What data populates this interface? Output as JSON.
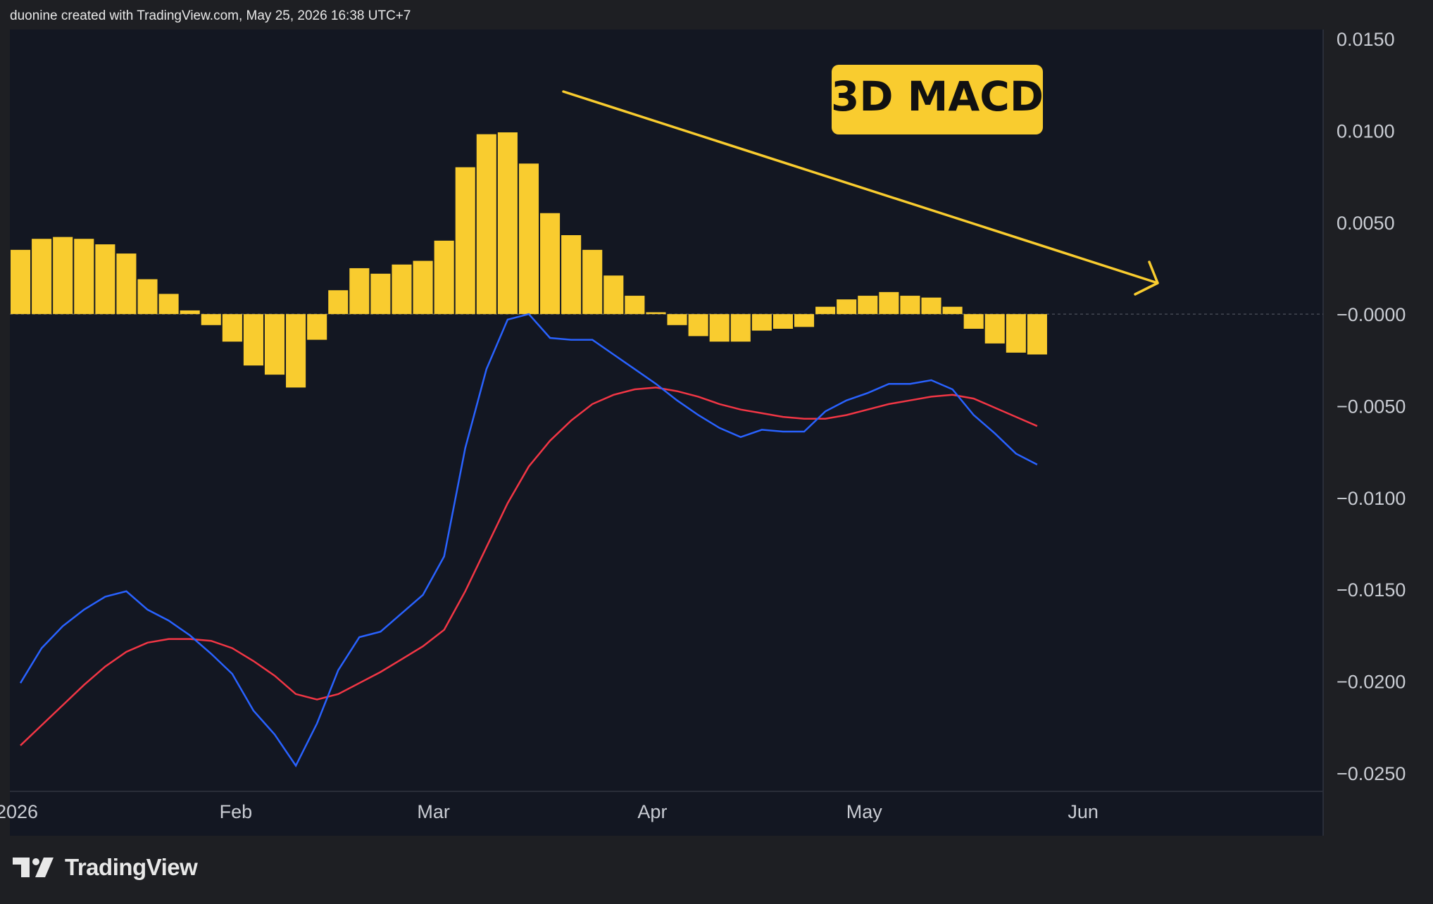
{
  "header": {
    "attribution": "duonine created with TradingView.com, May 25, 2026 16:38 UTC+7"
  },
  "brand": {
    "logo_text": "TradingView",
    "icon": "tradingview-logo-icon"
  },
  "colors": {
    "background": "#1e1f23",
    "plot_background": "#131722",
    "histogram": "#f9cc2f",
    "macd_line": "#2962ff",
    "signal_line": "#f23645",
    "annotation_bg": "#f9cc2f",
    "arrow": "#f9cc2f"
  },
  "annotation": {
    "label": "3D MACD",
    "arrow_icon": "down-trend-arrow-icon"
  },
  "chart_data": {
    "type": "bar",
    "title": "",
    "xlabel": "",
    "ylabel": "",
    "ylim": [
      -0.026,
      0.0155
    ],
    "yticks": [
      0.015,
      0.01,
      0.005,
      0.0,
      -0.005,
      -0.01,
      -0.015,
      -0.02,
      -0.025
    ],
    "ytick_labels": [
      "0.0150",
      "0.0100",
      "0.0050",
      "−0.0000",
      "−0.0050",
      "−0.0100",
      "−0.0150",
      "−0.0200",
      "−0.0250"
    ],
    "xticks": [
      {
        "label": "2026",
        "date": "2026-01-01"
      },
      {
        "label": "Feb",
        "date": "2026-02-01"
      },
      {
        "label": "Mar",
        "date": "2026-03-01"
      },
      {
        "label": "Apr",
        "date": "2026-04-01"
      },
      {
        "label": "May",
        "date": "2026-05-01"
      },
      {
        "label": "Jun",
        "date": "2026-06-01"
      }
    ],
    "xlim": [
      "2025-12-31",
      "2026-07-05"
    ],
    "grid": false,
    "x": [
      "2025-12-31",
      "2026-01-03",
      "2026-01-06",
      "2026-01-09",
      "2026-01-12",
      "2026-01-15",
      "2026-01-18",
      "2026-01-21",
      "2026-01-24",
      "2026-01-27",
      "2026-01-30",
      "2026-02-02",
      "2026-02-05",
      "2026-02-08",
      "2026-02-11",
      "2026-02-14",
      "2026-02-17",
      "2026-02-20",
      "2026-02-23",
      "2026-02-26",
      "2026-03-01",
      "2026-03-04",
      "2026-03-07",
      "2026-03-10",
      "2026-03-13",
      "2026-03-16",
      "2026-03-19",
      "2026-03-22",
      "2026-03-25",
      "2026-03-28",
      "2026-03-31",
      "2026-04-03",
      "2026-04-06",
      "2026-04-09",
      "2026-04-12",
      "2026-04-15",
      "2026-04-18",
      "2026-04-21",
      "2026-04-24",
      "2026-04-27",
      "2026-04-30",
      "2026-05-03",
      "2026-05-06",
      "2026-05-09",
      "2026-05-12",
      "2026-05-15",
      "2026-05-18",
      "2026-05-21",
      "2026-05-24"
    ],
    "series": [
      {
        "type": "bar",
        "values": [
          0.0035,
          0.0041,
          0.0042,
          0.0041,
          0.0038,
          0.0033,
          0.0019,
          0.0011,
          0.0002,
          -0.0006,
          -0.0015,
          -0.0028,
          -0.0033,
          -0.004,
          -0.0014,
          0.0013,
          0.0025,
          0.0022,
          0.0027,
          0.0029,
          0.004,
          0.008,
          0.0098,
          0.0099,
          0.0082,
          0.0055,
          0.0043,
          0.0035,
          0.0021,
          0.001,
          0.0001,
          -0.0006,
          -0.0012,
          -0.0015,
          -0.0015,
          -0.0009,
          -0.0008,
          -0.0007,
          0.0004,
          0.0008,
          0.001,
          0.0012,
          0.001,
          0.0009,
          0.0004,
          -0.0008,
          -0.0016,
          -0.0021,
          -0.0022
        ]
      },
      {
        "type": "line",
        "values": [
          -0.0201,
          -0.0182,
          -0.017,
          -0.0161,
          -0.0154,
          -0.0151,
          -0.0161,
          -0.0167,
          -0.0175,
          -0.0185,
          -0.0196,
          -0.0216,
          -0.0229,
          -0.0246,
          -0.0223,
          -0.0194,
          -0.0176,
          -0.0173,
          -0.0163,
          -0.0153,
          -0.0132,
          -0.0073,
          -0.003,
          -0.0003,
          0.0,
          -0.0013,
          -0.0014,
          -0.0014,
          -0.0022,
          -0.003,
          -0.0038,
          -0.0047,
          -0.0055,
          -0.0062,
          -0.0067,
          -0.0063,
          -0.0064,
          -0.0064,
          -0.0053,
          -0.0047,
          -0.0043,
          -0.0038,
          -0.0038,
          -0.0036,
          -0.0041,
          -0.0055,
          -0.0065,
          -0.0076,
          -0.0082
        ]
      },
      {
        "type": "line",
        "values": [
          -0.0235,
          -0.0224,
          -0.0213,
          -0.0202,
          -0.0192,
          -0.0184,
          -0.0179,
          -0.0177,
          -0.0177,
          -0.0178,
          -0.0182,
          -0.0189,
          -0.0197,
          -0.0207,
          -0.021,
          -0.0207,
          -0.0201,
          -0.0195,
          -0.0188,
          -0.0181,
          -0.0172,
          -0.0151,
          -0.0127,
          -0.0103,
          -0.0083,
          -0.0069,
          -0.0058,
          -0.0049,
          -0.0044,
          -0.0041,
          -0.004,
          -0.0042,
          -0.0045,
          -0.0049,
          -0.0052,
          -0.0054,
          -0.0056,
          -0.0057,
          -0.0057,
          -0.0055,
          -0.0052,
          -0.0049,
          -0.0047,
          -0.0045,
          -0.0044,
          -0.0046,
          -0.0051,
          -0.0056,
          -0.0061
        ]
      }
    ]
  }
}
